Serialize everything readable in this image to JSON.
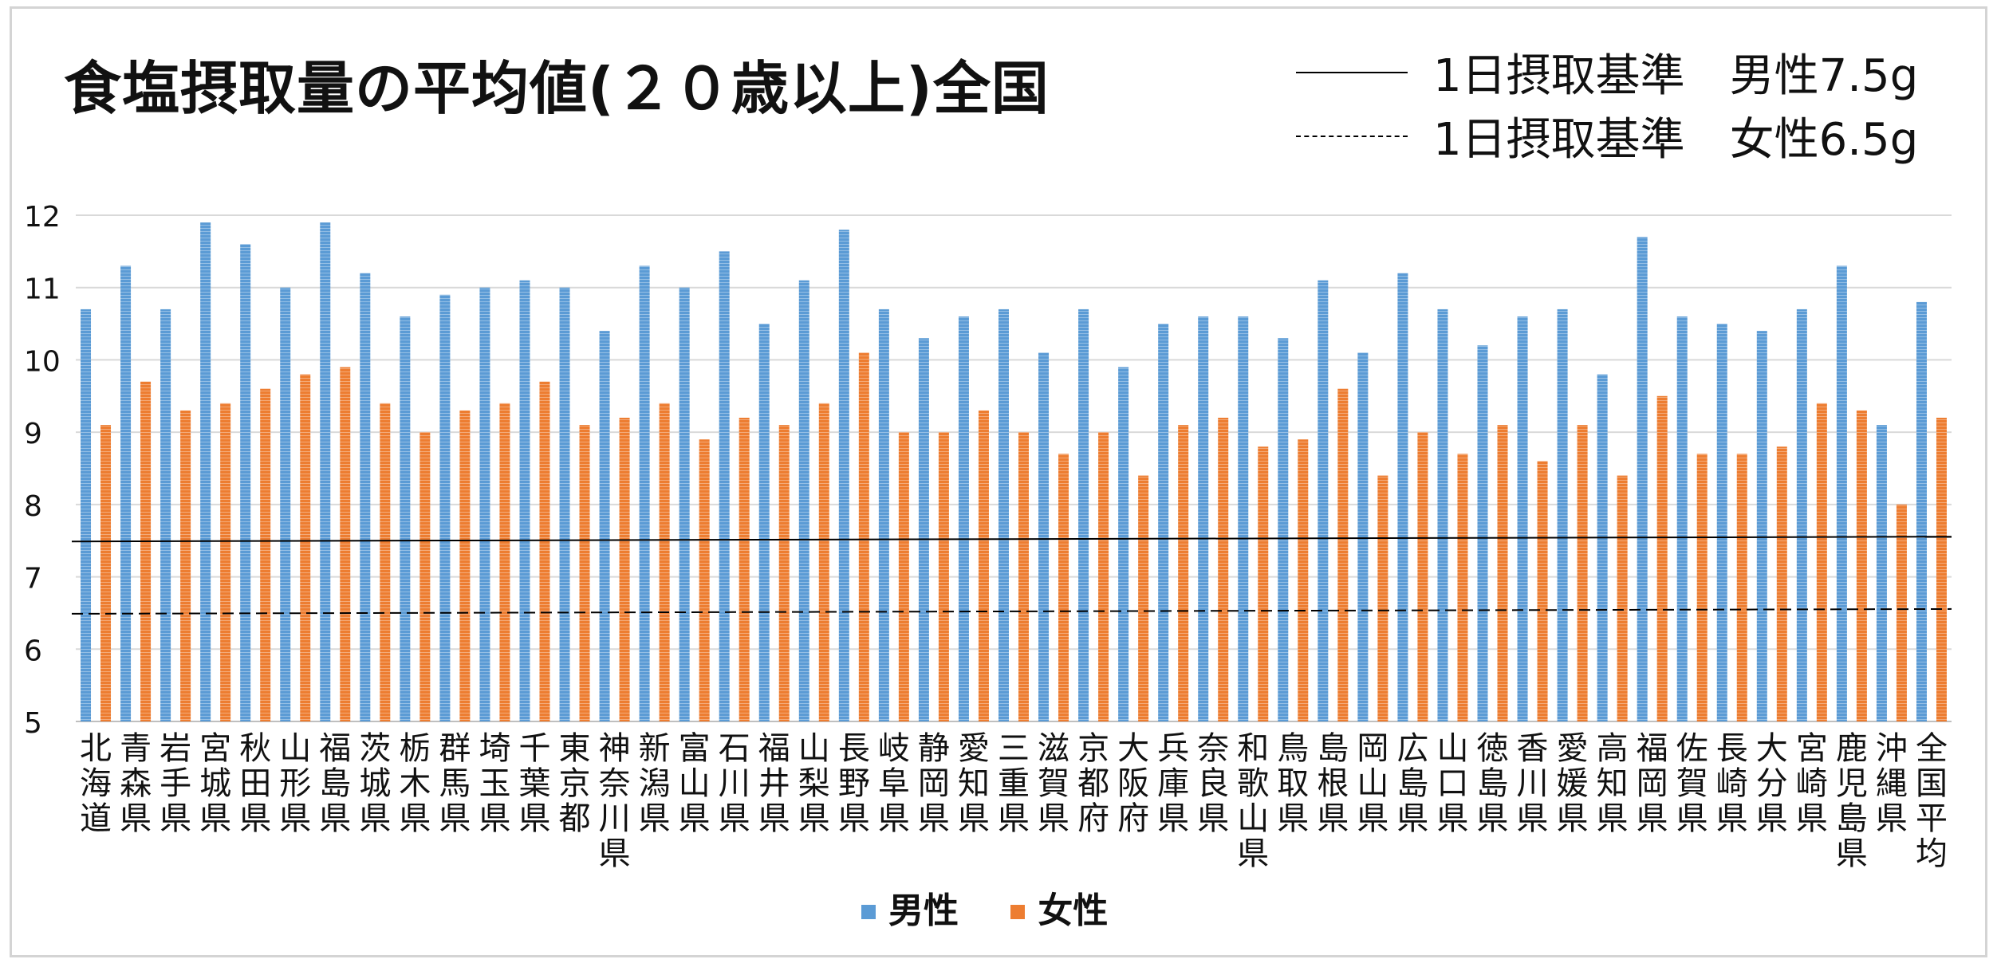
{
  "chart_data": {
    "type": "bar",
    "title": "食塩摂取量の平均値(２０歳以上)全国",
    "ylim": [
      5,
      12
    ],
    "yticks": [
      "5",
      "6",
      "7",
      "8",
      "9",
      "10",
      "11",
      "12"
    ],
    "grid": true,
    "legend_position": "bottom",
    "categories": [
      "北海道",
      "青森県",
      "岩手県",
      "宮城県",
      "秋田県",
      "山形県",
      "福島県",
      "茨城県",
      "栃木県",
      "群馬県",
      "埼玉県",
      "千葉県",
      "東京都",
      "神奈川県",
      "新潟県",
      "富山県",
      "石川県",
      "福井県",
      "山梨県",
      "長野県",
      "岐阜県",
      "静岡県",
      "愛知県",
      "三重県",
      "滋賀県",
      "京都府",
      "大阪府",
      "兵庫県",
      "奈良県",
      "和歌山県",
      "鳥取県",
      "島根県",
      "岡山県",
      "広島県",
      "山口県",
      "徳島県",
      "香川県",
      "愛媛県",
      "高知県",
      "福岡県",
      "佐賀県",
      "長崎県",
      "大分県",
      "宮崎県",
      "鹿児島県",
      "沖縄県",
      "全国平均"
    ],
    "series": [
      {
        "name": "男性",
        "color": "#5b9bd5",
        "values": [
          10.7,
          11.3,
          10.7,
          11.9,
          11.6,
          11.0,
          11.9,
          11.2,
          10.6,
          10.9,
          11.0,
          11.1,
          11.0,
          10.4,
          11.3,
          11.0,
          11.5,
          10.5,
          11.1,
          11.8,
          10.7,
          10.3,
          10.6,
          10.7,
          10.1,
          10.7,
          9.9,
          10.5,
          10.6,
          10.6,
          10.3,
          11.1,
          10.1,
          11.2,
          10.7,
          10.2,
          10.6,
          10.7,
          9.8,
          11.7,
          10.6,
          10.5,
          10.4,
          10.7,
          11.3,
          9.1,
          10.8
        ]
      },
      {
        "name": "女性",
        "color": "#ed7d31",
        "values": [
          9.1,
          9.7,
          9.3,
          9.4,
          9.6,
          9.8,
          9.9,
          9.4,
          9.0,
          9.3,
          9.4,
          9.7,
          9.1,
          9.2,
          9.4,
          8.9,
          9.2,
          9.1,
          9.4,
          10.1,
          9.0,
          9.0,
          9.3,
          9.0,
          8.7,
          9.0,
          8.4,
          9.1,
          9.2,
          8.8,
          8.9,
          9.6,
          8.4,
          9.0,
          8.7,
          9.1,
          8.6,
          9.1,
          8.4,
          9.5,
          8.7,
          8.7,
          8.8,
          9.4,
          9.3,
          8.0,
          9.2
        ]
      }
    ],
    "reference_lines": [
      {
        "label": "1日摂取基準　男性7.5g",
        "value": 7.5,
        "style": "solid"
      },
      {
        "label": "1日摂取基準　女性6.5g",
        "value": 6.5,
        "style": "dashed"
      }
    ]
  }
}
